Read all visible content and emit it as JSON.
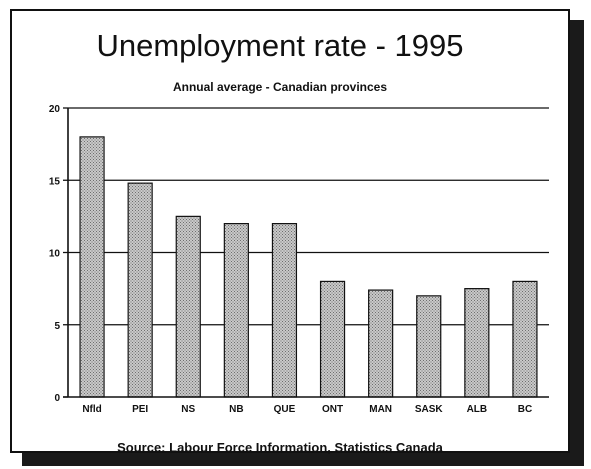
{
  "chart_data": {
    "type": "bar",
    "title": "Unemployment rate - 1995",
    "subtitle": "Annual average - Canadian provinces",
    "source": "Source: Labour Force Information, Statistics Canada",
    "categories": [
      "Nfld",
      "PEI",
      "NS",
      "NB",
      "QUE",
      "ONT",
      "MAN",
      "SASK",
      "ALB",
      "BC"
    ],
    "values": [
      18.0,
      14.8,
      12.5,
      12.0,
      12.0,
      8.0,
      7.4,
      7.0,
      7.5,
      8.0
    ],
    "yticks": [
      0,
      5,
      10,
      15,
      20
    ],
    "ylim": [
      0,
      20
    ],
    "xlabel": "",
    "ylabel": "",
    "grid": "horizontal",
    "colors": {
      "bar_fill": "#c9c9c9",
      "bar_pattern": "#6e6e6e",
      "bar_stroke": "#111111",
      "axis": "#111111"
    }
  }
}
